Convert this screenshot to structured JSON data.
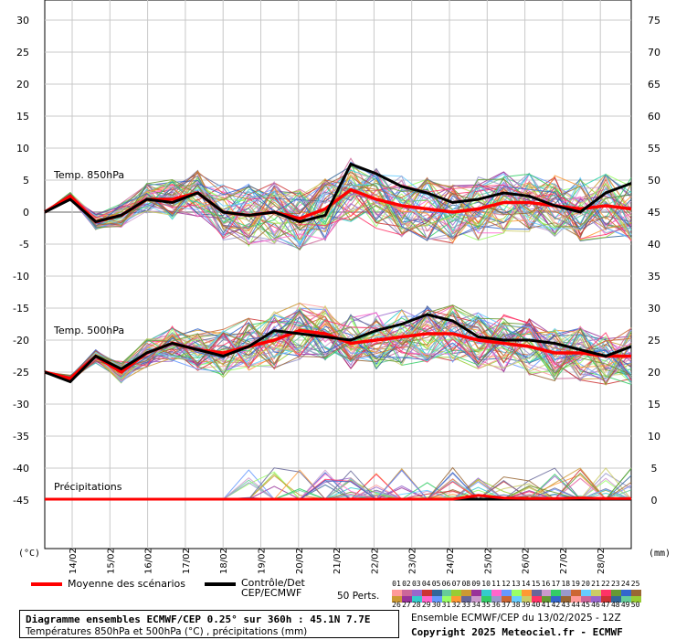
{
  "chart_data": {
    "type": "line",
    "title": "Diagramme ensembles ECMWF/CEP 0.25° sur 360h : 45.1N 7.7E",
    "subtitle": "Températures 850hPa et 500hPa (°C) , précipitations (mm)",
    "y_left_unit": "(°C)",
    "y_right_unit": "(mm)",
    "y_left_ticks": [
      30,
      25,
      20,
      15,
      10,
      5,
      0,
      -5,
      -10,
      -15,
      -20,
      -25,
      -30,
      -35,
      -40,
      -45
    ],
    "y_right_ticks": [
      75,
      70,
      65,
      60,
      55,
      50,
      45,
      40,
      35,
      30,
      25,
      20,
      15,
      10,
      5,
      0
    ],
    "x_ticks": [
      "14/02",
      "15/02",
      "16/02",
      "17/02",
      "18/02",
      "19/02",
      "20/02",
      "21/02",
      "22/02",
      "23/02",
      "24/02",
      "25/02",
      "26/02",
      "27/02",
      "28/02"
    ],
    "grid": true,
    "panel_labels": {
      "t850": "Temp. 850hPa",
      "t500": "Temp. 500hPa",
      "precip": "Précipitations"
    },
    "series": [
      {
        "name": "Moyenne des scénarios",
        "color": "#ff0000",
        "t850": [
          0,
          2.5,
          -1.5,
          -0.5,
          2,
          2,
          3,
          0,
          -0.5,
          0,
          -1,
          0.5,
          3.5,
          2,
          1,
          0.5,
          0,
          0.5,
          1.5,
          1.5,
          1,
          0.5,
          1,
          0.5
        ],
        "t500": [
          -25,
          -26,
          -22.5,
          -25,
          -22,
          -20.5,
          -21.5,
          -22,
          -21,
          -20,
          -18.5,
          -19,
          -20.5,
          -20,
          -19.5,
          -19,
          -19,
          -20,
          -20.5,
          -21,
          -22,
          -22,
          -22.5,
          -22.5
        ]
      },
      {
        "name": "Contrôle/Det CEP/ECMWF",
        "color": "#000000",
        "t850": [
          0,
          2,
          -1.5,
          -0.5,
          2,
          1.5,
          3,
          0,
          -0.5,
          0,
          -1.5,
          -0.5,
          7.5,
          6,
          4,
          3,
          1.5,
          2,
          3,
          2.5,
          1,
          0,
          3,
          4.5
        ],
        "t500": [
          -25,
          -26.5,
          -22.5,
          -24.5,
          -22,
          -20.5,
          -21.5,
          -22.5,
          -21,
          -18.5,
          -19,
          -19.5,
          -20,
          -18.5,
          -17.5,
          -16,
          -17,
          -19.5,
          -20,
          -20,
          -20.5,
          -21.5,
          -22.5,
          -21
        ]
      }
    ],
    "precip_mean": [
      0,
      0,
      0,
      0,
      0,
      0,
      0,
      0,
      0,
      0,
      0,
      0,
      0,
      0,
      0,
      0,
      0,
      0.6,
      0.2,
      0.1,
      0.1,
      0.2,
      0.1,
      0.1
    ],
    "ensemble_count_label": "50 Perts.",
    "member_labels_row1": [
      "01",
      "02",
      "03",
      "04",
      "05",
      "06",
      "07",
      "08",
      "09",
      "10",
      "11",
      "12",
      "13",
      "14",
      "15",
      "16",
      "17",
      "18",
      "19",
      "20",
      "21",
      "22",
      "23",
      "24",
      "25"
    ],
    "member_labels_row2": [
      "26",
      "27",
      "28",
      "29",
      "30",
      "31",
      "32",
      "33",
      "34",
      "35",
      "36",
      "37",
      "38",
      "39",
      "40",
      "41",
      "42",
      "43",
      "44",
      "45",
      "46",
      "47",
      "48",
      "49",
      "50"
    ],
    "member_colors": [
      "#ff9999",
      "#cc6699",
      "#9966cc",
      "#cc3333",
      "#336699",
      "#66cc99",
      "#99cc33",
      "#cc9933",
      "#993399",
      "#33cccc",
      "#ff66cc",
      "#6699ff",
      "#99ff66",
      "#ff9933",
      "#666699",
      "#cc99cc",
      "#33cc66",
      "#9999cc",
      "#cc6633",
      "#66ccff",
      "#cccc66",
      "#ff3366",
      "#669933",
      "#3366cc",
      "#996633"
    ],
    "run_info": "Ensemble ECMWF/CEP du 13/02/2025 - 12Z",
    "copyright": "Copyright 2025 Meteociel.fr - ECMWF"
  }
}
